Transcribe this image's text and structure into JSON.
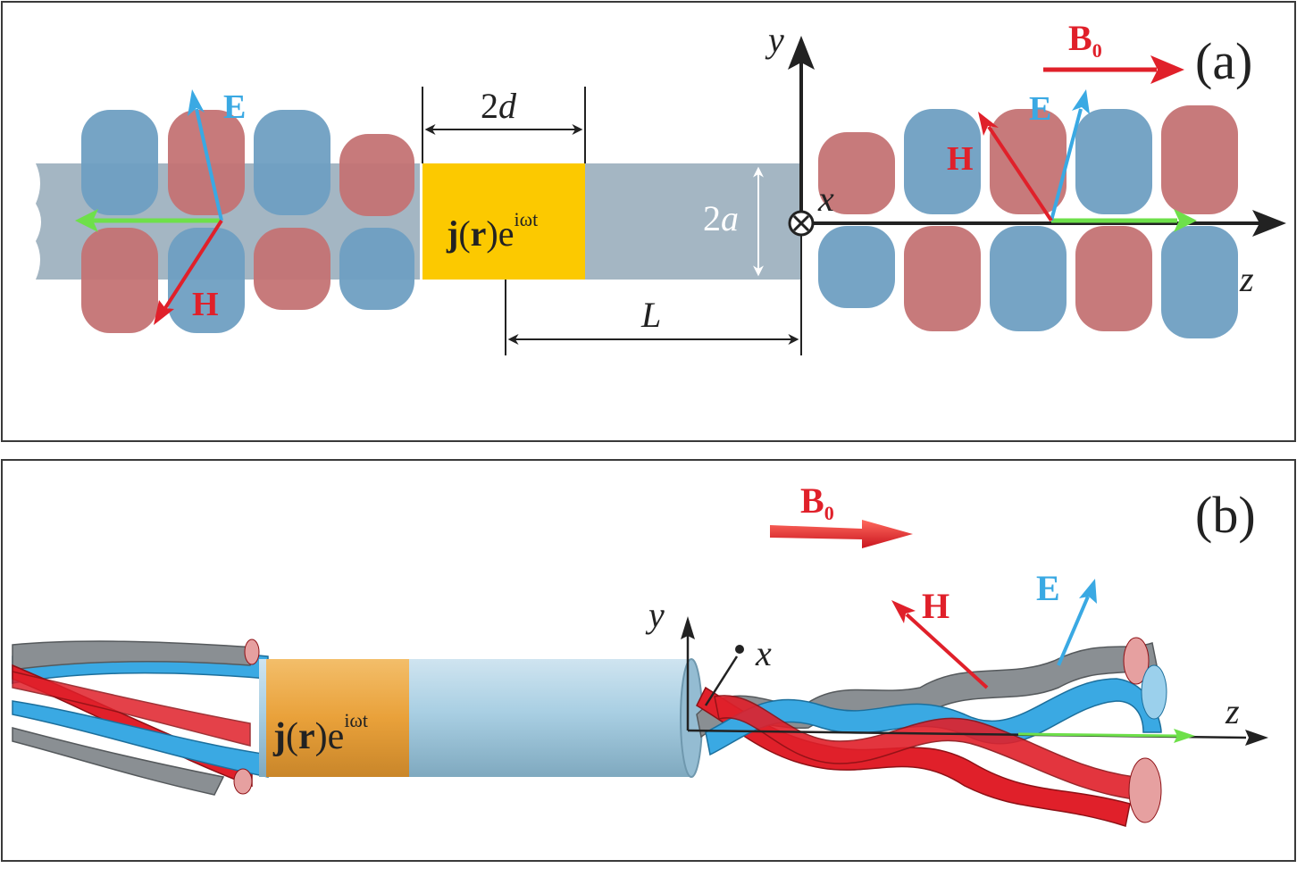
{
  "panel_a": {
    "label": "(a)",
    "axes": {
      "y": "y",
      "x": "x",
      "z": "z"
    },
    "field": {
      "B0": "B",
      "B0_sub": "0",
      "E": "E",
      "H": "H"
    },
    "source": {
      "j": "j",
      "paren_open": "(",
      "r": "r",
      "paren_close": ")",
      "e": "e",
      "exp": "iωt"
    },
    "dims": {
      "two_d_num": "2",
      "two_d_var": "d",
      "two_a_num": "2",
      "two_a_var": "a",
      "L": "L"
    }
  },
  "panel_b": {
    "label": "(b)",
    "axes": {
      "y": "y",
      "x": "x",
      "z": "z"
    },
    "field": {
      "B0": "B",
      "B0_sub": "0",
      "E": "E",
      "H": "H"
    },
    "source": {
      "j": "j",
      "paren_open": "(",
      "r": "r",
      "paren_close": ")",
      "e": "e",
      "exp": "iωt"
    }
  },
  "colors": {
    "blue_lobe": "#6f9fc2",
    "red_lobe": "#c47374",
    "waveguide": "#a4b6c3",
    "source": "#fcc900",
    "E_arrow": "#3aa9e3",
    "H_arrow": "#e0202a",
    "k_arrow": "#6ee04a",
    "axis": "#222222",
    "tube_b": "#a9cfe3",
    "band_b": "#e9a13a"
  }
}
